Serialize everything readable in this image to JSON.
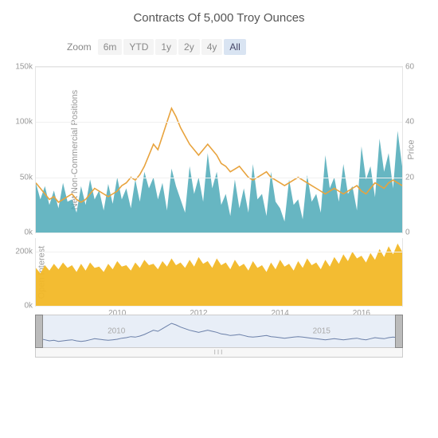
{
  "chart": {
    "title": "Contracts Of 5,000 Troy Ounces",
    "zoom": {
      "label": "Zoom",
      "options": [
        "6m",
        "YTD",
        "1y",
        "2y",
        "4y",
        "All"
      ],
      "active": "All"
    },
    "panel1": {
      "y_left_label": "Net Non-Commercial Positions",
      "y_right_label": "Price",
      "y_left": {
        "min": 0,
        "max": 150,
        "ticks": [
          0,
          50,
          100,
          150
        ],
        "tick_labels": [
          "0k",
          "50k",
          "100k",
          "150k"
        ]
      },
      "y_right": {
        "min": 0,
        "max": 60,
        "ticks": [
          0,
          20,
          40,
          60
        ],
        "tick_labels": [
          "0",
          "20",
          "40",
          "60"
        ]
      },
      "area_color": "#4ca9b7",
      "line_color": "#e8a33d",
      "line_width": 1.6,
      "background": "#ffffff",
      "grid_color": "#f0f0f0",
      "positions": [
        45,
        30,
        42,
        25,
        38,
        22,
        45,
        28,
        30,
        18,
        42,
        25,
        48,
        30,
        38,
        20,
        44,
        26,
        50,
        30,
        40,
        22,
        48,
        28,
        55,
        40,
        50,
        30,
        45,
        20,
        58,
        42,
        30,
        18,
        60,
        35,
        50,
        28,
        72,
        40,
        55,
        25,
        35,
        15,
        48,
        22,
        40,
        18,
        62,
        30,
        35,
        15,
        55,
        28,
        22,
        10,
        48,
        25,
        30,
        12,
        52,
        28,
        35,
        18,
        70,
        40,
        50,
        28,
        62,
        35,
        42,
        20,
        78,
        48,
        60,
        32,
        85,
        55,
        72,
        40,
        92,
        60
      ],
      "price": [
        18,
        16,
        14,
        12,
        13,
        11,
        12,
        13,
        14,
        12,
        11,
        12,
        14,
        16,
        15,
        14,
        13,
        14,
        15,
        17,
        18,
        20,
        19,
        21,
        24,
        28,
        32,
        30,
        35,
        40,
        45,
        42,
        38,
        35,
        32,
        30,
        28,
        30,
        32,
        30,
        28,
        25,
        24,
        22,
        23,
        24,
        22,
        20,
        19,
        20,
        21,
        22,
        20,
        19,
        18,
        17,
        18,
        19,
        20,
        19,
        18,
        17,
        16,
        15,
        14,
        15,
        16,
        15,
        14,
        15,
        16,
        17,
        15,
        14,
        16,
        18,
        17,
        16,
        18,
        19,
        18,
        17
      ]
    },
    "panel2": {
      "y_left_label": "Open Interest",
      "y_left": {
        "min": 0,
        "max": 250,
        "ticks": [
          0,
          200
        ],
        "tick_labels": [
          "0k",
          "200k"
        ]
      },
      "area_color": "#f2b827",
      "open_interest": [
        140,
        120,
        150,
        130,
        155,
        135,
        160,
        140,
        150,
        125,
        155,
        130,
        160,
        140,
        145,
        125,
        155,
        135,
        165,
        145,
        150,
        130,
        160,
        140,
        170,
        150,
        155,
        135,
        165,
        145,
        175,
        150,
        160,
        140,
        170,
        145,
        180,
        155,
        165,
        140,
        175,
        150,
        160,
        135,
        170,
        145,
        155,
        130,
        165,
        140,
        150,
        125,
        160,
        135,
        170,
        145,
        155,
        130,
        165,
        140,
        175,
        150,
        160,
        135,
        170,
        145,
        180,
        155,
        190,
        165,
        200,
        175,
        185,
        160,
        195,
        170,
        210,
        180,
        220,
        190,
        230,
        200
      ]
    },
    "x_axis": {
      "min": 2008,
      "max": 2017,
      "ticks": [
        2010,
        2012,
        2014,
        2016
      ],
      "tick_labels": [
        "2010",
        "2012",
        "2014",
        "2016"
      ]
    },
    "navigator": {
      "line_color": "#6a7fa8",
      "bg": "#e8eef7",
      "years": [
        "2010",
        "2015"
      ],
      "year_positions": [
        22,
        78
      ]
    }
  }
}
